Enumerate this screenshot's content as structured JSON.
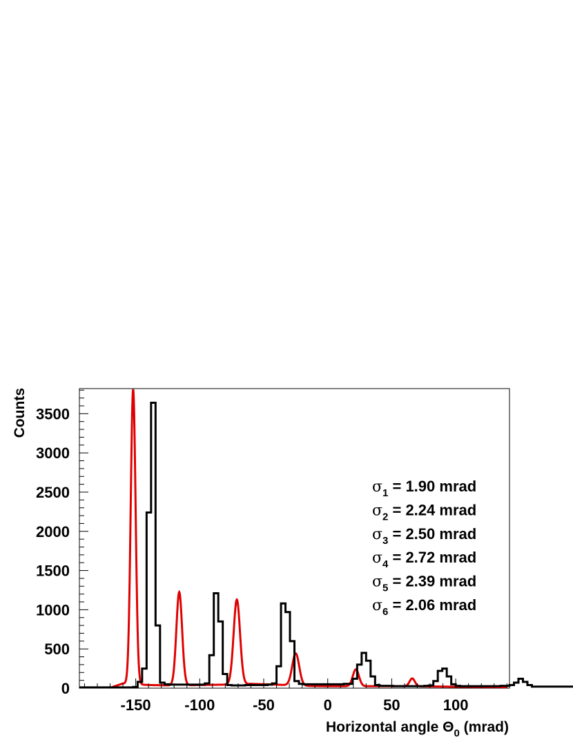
{
  "chart_data": {
    "type": "line",
    "xlabel": "Horizontal angle Θ",
    "xlabel_sub": "0",
    "xlabel_unit": "(mrad)",
    "ylabel": "Counts",
    "xlim": [
      -194,
      142
    ],
    "ylim": [
      0,
      3820
    ],
    "xticks": [
      -150,
      -100,
      -50,
      0,
      50,
      100
    ],
    "yticks": [
      0,
      500,
      1000,
      1500,
      2000,
      2500,
      3000,
      3500
    ],
    "grid": false,
    "series": [
      {
        "name": "",
        "style": "histogram",
        "color": "#000000",
        "x_start": -194,
        "bin_width": 3.5,
        "values": [
          10,
          10,
          10,
          10,
          10,
          10,
          10,
          10,
          10,
          10,
          10,
          10,
          15,
          80,
          250,
          2240,
          3640,
          800,
          70,
          50,
          45,
          45,
          45,
          45,
          45,
          45,
          45,
          45,
          60,
          420,
          1210,
          850,
          180,
          40,
          35,
          35,
          35,
          40,
          40,
          40,
          40,
          40,
          45,
          60,
          280,
          1080,
          970,
          600,
          90,
          55,
          50,
          50,
          50,
          50,
          50,
          50,
          50,
          50,
          50,
          55,
          55,
          120,
          300,
          450,
          350,
          150,
          40,
          30,
          30,
          30,
          25,
          25,
          25,
          25,
          25,
          25,
          25,
          30,
          35,
          90,
          220,
          250,
          150,
          50,
          30,
          25,
          25,
          25,
          25,
          25,
          25,
          25,
          25,
          25,
          30,
          30,
          40,
          70,
          120,
          80,
          40,
          20,
          20,
          20,
          20,
          20,
          20,
          20,
          20,
          20,
          20,
          20,
          20,
          20,
          20,
          20,
          15,
          15,
          15,
          15,
          15,
          15,
          15,
          15,
          15,
          15,
          15,
          10,
          10,
          10
        ]
      },
      {
        "name": "",
        "style": "fit",
        "color": "#e00000",
        "baseline": [
          [
            -170,
            5
          ],
          [
            -160,
            60
          ],
          [
            -140,
            40
          ],
          [
            -120,
            35
          ],
          [
            -100,
            40
          ],
          [
            -80,
            45
          ],
          [
            -60,
            55
          ],
          [
            -40,
            45
          ],
          [
            -20,
            30
          ],
          [
            0,
            25
          ],
          [
            20,
            25
          ],
          [
            40,
            25
          ],
          [
            60,
            25
          ],
          [
            80,
            22
          ],
          [
            100,
            18
          ],
          [
            120,
            15
          ],
          [
            140,
            12
          ]
        ],
        "peaks": [
          {
            "center": -152.0,
            "amplitude": 3760,
            "sigma": 1.9
          },
          {
            "center": -116.0,
            "amplitude": 1190,
            "sigma": 2.24
          },
          {
            "center": -71.0,
            "amplitude": 1080,
            "sigma": 2.5
          },
          {
            "center": -25.0,
            "amplitude": 410,
            "sigma": 2.72
          },
          {
            "center": 22.0,
            "amplitude": 215,
            "sigma": 2.39
          },
          {
            "center": 66.0,
            "amplitude": 100,
            "sigma": 2.06
          }
        ]
      }
    ],
    "annotations": [
      {
        "symbol": "σ",
        "sub": "1",
        "text": " = 1.90 mrad"
      },
      {
        "symbol": "σ",
        "sub": "2",
        "text": " = 2.24 mrad"
      },
      {
        "symbol": "σ",
        "sub": "3",
        "text": " = 2.50 mrad"
      },
      {
        "symbol": "σ",
        "sub": "4",
        "text": " = 2.72 mrad"
      },
      {
        "symbol": "σ",
        "sub": "5",
        "text": " = 2.39 mrad"
      },
      {
        "symbol": "σ",
        "sub": "6",
        "text": " = 2.06 mrad"
      }
    ]
  }
}
